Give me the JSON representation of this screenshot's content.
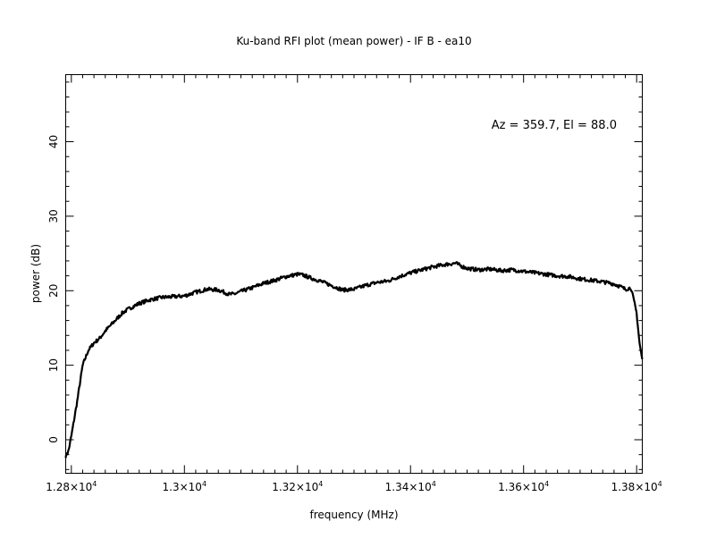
{
  "chart_data": {
    "type": "line",
    "title": "Ku-band RFI plot (mean power) - IF B - ea10",
    "xlabel": "frequency (MHz)",
    "ylabel": "power (dB)",
    "annotation": "Az = 359.7, El = 88.0",
    "xlim": [
      12790,
      13810
    ],
    "ylim": [
      -4.5,
      49
    ],
    "xticks": [
      {
        "value": 12800,
        "mant": "1.28",
        "exp": "4"
      },
      {
        "value": 13000,
        "mant": "1.3",
        "exp": "4"
      },
      {
        "value": 13200,
        "mant": "1.32",
        "exp": "4"
      },
      {
        "value": 13400,
        "mant": "1.34",
        "exp": "4"
      },
      {
        "value": 13600,
        "mant": "1.36",
        "exp": "4"
      },
      {
        "value": 13800,
        "mant": "1.38",
        "exp": "4"
      }
    ],
    "yticks": [
      0,
      10,
      20,
      30,
      40
    ],
    "grid": false,
    "series": [
      {
        "color": "#000000",
        "x": [
          12790,
          12795,
          12800,
          12810,
          12820,
          12830,
          12840,
          12850,
          12860,
          12870,
          12880,
          12890,
          12900,
          12920,
          12940,
          12960,
          12980,
          13000,
          13020,
          13040,
          13060,
          13070,
          13080,
          13090,
          13100,
          13120,
          13140,
          13160,
          13180,
          13200,
          13210,
          13220,
          13240,
          13260,
          13280,
          13300,
          13320,
          13340,
          13360,
          13380,
          13400,
          13420,
          13440,
          13460,
          13480,
          13490,
          13500,
          13520,
          13540,
          13560,
          13580,
          13600,
          13620,
          13640,
          13660,
          13680,
          13700,
          13720,
          13740,
          13760,
          13770,
          13780,
          13790,
          13800,
          13805,
          13810
        ],
        "y": [
          -2.2,
          -1.5,
          0.5,
          5,
          10,
          12,
          13,
          13.6,
          14.6,
          15.4,
          16.2,
          17,
          17.5,
          18.3,
          18.8,
          19.1,
          19.2,
          19.3,
          19.8,
          20.2,
          20.1,
          19.8,
          19.5,
          19.6,
          19.9,
          20.4,
          21,
          21.4,
          21.9,
          22.2,
          22.1,
          21.8,
          21.3,
          20.7,
          20.1,
          20.2,
          20.7,
          21.1,
          21.3,
          21.9,
          22.4,
          22.8,
          23.2,
          23.5,
          23.7,
          23.3,
          23.0,
          22.8,
          22.9,
          22.7,
          22.8,
          22.6,
          22.4,
          22.2,
          22.0,
          21.9,
          21.6,
          21.4,
          21.2,
          20.9,
          20.6,
          20.2,
          20.4,
          17,
          13,
          10.7
        ]
      }
    ]
  }
}
